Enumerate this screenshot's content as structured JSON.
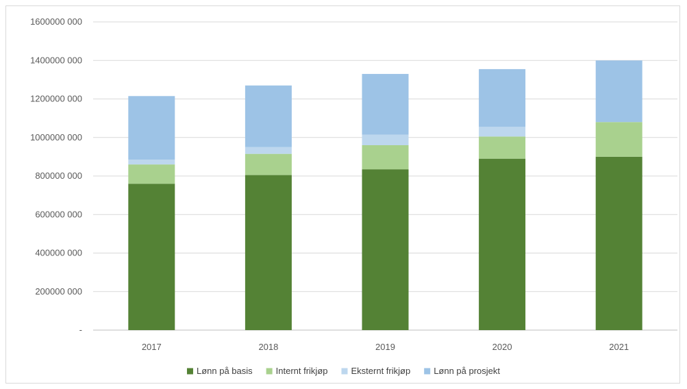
{
  "chart_data": {
    "type": "bar",
    "stacked": true,
    "categories": [
      "2017",
      "2018",
      "2019",
      "2020",
      "2021"
    ],
    "series": [
      {
        "name": "Lønn på basis",
        "color": "#548235",
        "values": [
          760000000,
          805000000,
          835000000,
          890000000,
          900000000
        ]
      },
      {
        "name": "Internt frikjøp",
        "color": "#a9d18e",
        "values": [
          100000000,
          110000000,
          125000000,
          115000000,
          180000000
        ]
      },
      {
        "name": "Eksternt frikjøp",
        "color": "#bdd7ee",
        "values": [
          25000000,
          35000000,
          55000000,
          50000000,
          0
        ]
      },
      {
        "name": "Lønn på prosjekt",
        "color": "#9dc3e6",
        "values": [
          330000000,
          320000000,
          315000000,
          300000000,
          320000000
        ]
      }
    ],
    "ylim": [
      0,
      1600000000
    ],
    "yticks": [
      0,
      200000000,
      400000000,
      600000000,
      800000000,
      1000000000,
      1200000000,
      1400000000,
      1600000000
    ],
    "ytick_labels": [
      "-",
      "200000 000",
      "400000 000",
      "600000 000",
      "800000 000",
      "1000000 000",
      "1200000 000",
      "1400000 000",
      "1600000 000"
    ],
    "grid": true,
    "legend_position": "bottom",
    "title": "",
    "xlabel": "",
    "ylabel": ""
  }
}
